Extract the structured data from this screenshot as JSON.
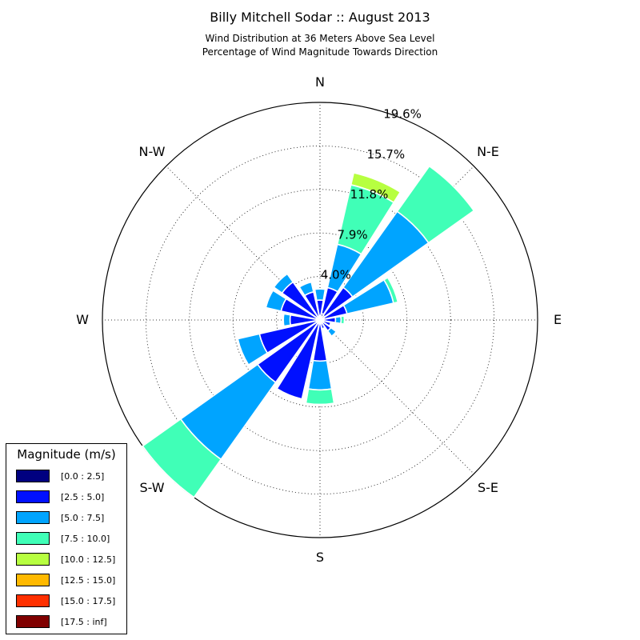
{
  "chart_data": {
    "type": "windrose",
    "title": "Billy Mitchell Sodar :: August 2013",
    "subtitle": "Wind Distribution at 36 Meters Above Sea Level",
    "subtitle2": "Percentage of Wind Magnitude Towards Direction",
    "direction_labels": [
      "N",
      "N-E",
      "E",
      "S-E",
      "S",
      "S-W",
      "W",
      "N-W"
    ],
    "radial_tick_labels": [
      "4.0%",
      "7.9%",
      "11.8%",
      "15.7%",
      "19.6%"
    ],
    "radial_max": 19.6,
    "legend_title": "Magnitude (m/s)",
    "legend_placement": "lower-left",
    "speed_bins": [
      {
        "label": "[0.0 : 2.5]",
        "color": "#000080"
      },
      {
        "label": "[2.5 : 5.0]",
        "color": "#0010ff"
      },
      {
        "label": "[5.0 : 7.5]",
        "color": "#00a4ff"
      },
      {
        "label": "[7.5 : 10.0]",
        "color": "#40ffb7"
      },
      {
        "label": "[10.0 : 12.5]",
        "color": "#b7ff40"
      },
      {
        "label": "[12.5 : 15.0]",
        "color": "#ffb900"
      },
      {
        "label": "[15.0 : 17.5]",
        "color": "#ff3000"
      },
      {
        "label": "[17.5 : inf]",
        "color": "#800000"
      }
    ],
    "sectors": [
      {
        "direction": 0,
        "cumulative": [
          0.4,
          1.8,
          2.8
        ]
      },
      {
        "direction": 22.5,
        "cumulative": [
          0.6,
          3.0,
          7.0,
          12.5,
          13.6
        ]
      },
      {
        "direction": 45,
        "cumulative": [
          0.5,
          3.6,
          12.0,
          17.0
        ]
      },
      {
        "direction": 67.5,
        "cumulative": [
          0.4,
          2.5,
          6.8,
          7.2
        ]
      },
      {
        "direction": 90,
        "cumulative": [
          0.3,
          1.4,
          1.9,
          2.2
        ]
      },
      {
        "direction": 112.5,
        "cumulative": [
          0.3,
          1.0
        ]
      },
      {
        "direction": 135,
        "cumulative": [
          0.3,
          1.2,
          1.8
        ]
      },
      {
        "direction": 157.5,
        "cumulative": [
          0.3,
          0.8
        ]
      },
      {
        "direction": 180,
        "cumulative": [
          0.3,
          3.7,
          6.3,
          7.6
        ]
      },
      {
        "direction": 202.5,
        "cumulative": [
          0.3,
          7.3
        ]
      },
      {
        "direction": 225,
        "cumulative": [
          0.3,
          6.9,
          15.4,
          19.6
        ]
      },
      {
        "direction": 247.5,
        "cumulative": [
          0.3,
          5.6,
          7.6
        ]
      },
      {
        "direction": 270,
        "cumulative": [
          0.3,
          2.7,
          3.3
        ]
      },
      {
        "direction": 292.5,
        "cumulative": [
          0.3,
          3.6,
          5.0
        ]
      },
      {
        "direction": 315,
        "cumulative": [
          0.3,
          4.2,
          5.1
        ]
      },
      {
        "direction": 337.5,
        "cumulative": [
          0.3,
          2.6,
          3.5
        ]
      }
    ]
  }
}
